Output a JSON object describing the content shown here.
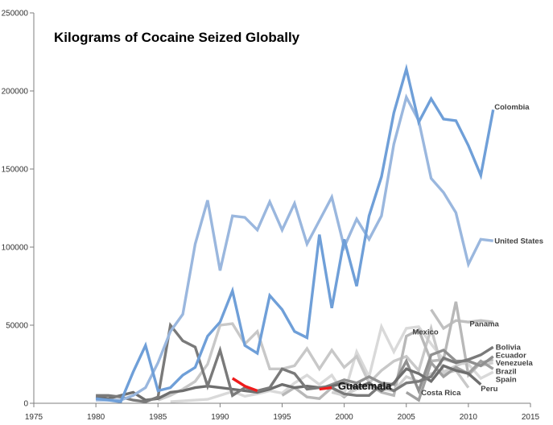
{
  "chart_data": {
    "type": "line",
    "title": "Kilograms of Cocaine Seized Globally",
    "xlabel": "",
    "ylabel": "",
    "xlim": [
      1975,
      2015
    ],
    "ylim": [
      0,
      250000
    ],
    "x_ticks": [
      "1975",
      "1980",
      "1985",
      "1990",
      "1995",
      "2000",
      "2005",
      "2010",
      "2015"
    ],
    "y_ticks": [
      "0",
      "50000",
      "100000",
      "150000",
      "200000",
      "250000"
    ],
    "grid": false,
    "legend": "none (series labelled at line ends)",
    "series": [
      {
        "name": "Spain",
        "color": "#d9d9d9",
        "x": [
          1986,
          1987,
          1988,
          1989,
          1990,
          1991,
          1992,
          1993,
          1994,
          1995,
          1996,
          1997,
          1998,
          1999,
          2000,
          2001,
          2002,
          2003,
          2004,
          2005,
          2006,
          2007,
          2008,
          2009,
          2010,
          2011,
          2012
        ],
        "values": [
          1000,
          1500,
          2000,
          2500,
          5000,
          7500,
          4500,
          6000,
          8000,
          6500,
          13000,
          18000,
          12000,
          18000,
          6000,
          33000,
          17000,
          49000,
          33000,
          48000,
          49000,
          38000,
          28000,
          26000,
          25000,
          16000,
          20000
        ]
      },
      {
        "name": "Panama",
        "color": "#c0c0c0",
        "x": [
          2007,
          2008,
          2009,
          2010,
          2011,
          2012
        ],
        "values": [
          60000,
          48000,
          53000,
          52000,
          53000,
          52000
        ]
      },
      {
        "name": "Mexico",
        "color": "#c8c8c8",
        "x": [
          1985,
          1986,
          1987,
          1988,
          1989,
          1990,
          1991,
          1992,
          1993,
          1994,
          1995,
          1996,
          1997,
          1998,
          1999,
          2000,
          2001,
          2002,
          2003,
          2004,
          2005,
          2006,
          2007,
          2008,
          2009,
          2010
        ],
        "values": [
          2000,
          5000,
          9000,
          14000,
          25000,
          50000,
          51000,
          38000,
          46000,
          22000,
          22000,
          24000,
          35000,
          22000,
          34000,
          23000,
          30000,
          13000,
          21000,
          27000,
          30000,
          21000,
          48000,
          19000,
          21000,
          10000
        ]
      },
      {
        "name": "Ecuador",
        "color": "#b8b8b8",
        "x": [
          1995,
          1996,
          1997,
          1998,
          1999,
          2000,
          2001,
          2002,
          2003,
          2004,
          2005,
          2006,
          2007,
          2008,
          2009,
          2010,
          2011,
          2012
        ],
        "values": [
          5000,
          10000,
          4000,
          3000,
          10000,
          4000,
          11000,
          12000,
          7000,
          5000,
          43000,
          47000,
          27000,
          28000,
          65000,
          18000,
          26000,
          28000
        ]
      },
      {
        "name": "Brazil",
        "color": "#d0d0d0",
        "x": [
          1999,
          2000,
          2001,
          2002,
          2003,
          2004,
          2005,
          2006,
          2007,
          2008,
          2009,
          2010,
          2011,
          2012
        ],
        "values": [
          7000,
          5000,
          9000,
          10000,
          9000,
          8000,
          17000,
          14000,
          19000,
          20000,
          24000,
          27000,
          24000,
          26000
        ]
      },
      {
        "name": "Costa Rica",
        "color": "#a0a0a0",
        "x": [
          2005,
          2006,
          2007,
          2008,
          2009,
          2010,
          2011,
          2012
        ],
        "values": [
          7000,
          2000,
          26000,
          17000,
          23000,
          19000,
          27000,
          22000
        ]
      },
      {
        "name": "Venezuela",
        "color": "#909090",
        "x": [
          1998,
          1999,
          2000,
          2001,
          2002,
          2003,
          2004,
          2005,
          2006,
          2007,
          2008,
          2009,
          2010,
          2011,
          2012
        ],
        "values": [
          9000,
          12000,
          15000,
          13000,
          17000,
          13000,
          12000,
          27000,
          8000,
          31000,
          34000,
          27000,
          27000,
          24000,
          30000
        ]
      },
      {
        "name": "Peru",
        "color": "#6e6e6e",
        "x": [
          1980,
          1981,
          1982,
          1983,
          1984,
          1985,
          1986,
          1987,
          1988,
          1989,
          1990,
          1991,
          1992,
          1993,
          1994,
          1995,
          1996,
          1997,
          1998,
          1999,
          2000,
          2001,
          2002,
          2003,
          2004,
          2005,
          2006,
          2007,
          2008,
          2009,
          2010,
          2011
        ],
        "values": [
          4000,
          3000,
          5000,
          7000,
          2000,
          3000,
          7000,
          8000,
          10000,
          11000,
          10000,
          9000,
          8000,
          7000,
          9000,
          12000,
          10000,
          11000,
          10000,
          11000,
          13000,
          10000,
          13000,
          8000,
          13000,
          22000,
          19000,
          14000,
          24000,
          21000,
          19000,
          12000
        ]
      },
      {
        "name": "Bolivia",
        "color": "#7a7a7a",
        "x": [
          1980,
          1981,
          1982,
          1983,
          1984,
          1985,
          1986,
          1987,
          1988,
          1989,
          1990,
          1991,
          1992,
          1993,
          1994,
          1995,
          1996,
          1997,
          1998,
          1999,
          2000,
          2001,
          2002,
          2003,
          2004,
          2005,
          2006,
          2007,
          2008,
          2009,
          2010,
          2011,
          2012
        ],
        "values": [
          5000,
          5000,
          4000,
          2000,
          1000,
          4000,
          50000,
          40000,
          36000,
          11000,
          34000,
          5000,
          10000,
          8000,
          10000,
          22000,
          19000,
          9000,
          10000,
          10000,
          6000,
          5000,
          5000,
          12000,
          8000,
          13000,
          14000,
          17000,
          29000,
          26000,
          28000,
          31000,
          36000
        ]
      },
      {
        "name": "United States",
        "color": "#9ab7de",
        "x": [
          1980,
          1981,
          1982,
          1983,
          1984,
          1985,
          1986,
          1987,
          1988,
          1989,
          1990,
          1991,
          1992,
          1993,
          1994,
          1995,
          1996,
          1997,
          1998,
          1999,
          2000,
          2001,
          2002,
          2003,
          2004,
          2005,
          2006,
          2007,
          2008,
          2009,
          2010,
          2011,
          2012
        ],
        "values": [
          2000,
          2000,
          2000,
          5000,
          10000,
          26000,
          46000,
          57000,
          102000,
          130000,
          85000,
          120000,
          119000,
          111000,
          129000,
          111000,
          128000,
          102000,
          117000,
          132000,
          100000,
          118000,
          105000,
          120000,
          166000,
          196000,
          181000,
          144000,
          135000,
          122000,
          89000,
          105000,
          104000
        ]
      },
      {
        "name": "Colombia",
        "color": "#6f9fd8",
        "x": [
          1980,
          1981,
          1982,
          1983,
          1984,
          1985,
          1986,
          1987,
          1988,
          1989,
          1990,
          1991,
          1992,
          1993,
          1994,
          1995,
          1996,
          1997,
          1998,
          1999,
          2000,
          2001,
          2002,
          2003,
          2004,
          2005,
          2006,
          2007,
          2008,
          2009,
          2010,
          2011,
          2012
        ],
        "values": [
          3000,
          2000,
          1000,
          20000,
          37000,
          8000,
          10000,
          18000,
          23000,
          43000,
          52000,
          72000,
          37000,
          32000,
          69000,
          60000,
          46000,
          42000,
          108000,
          61000,
          105000,
          75000,
          120000,
          145000,
          186000,
          214000,
          180000,
          195000,
          182000,
          181000,
          165000,
          146000,
          188000
        ]
      },
      {
        "name": "Guatemala",
        "color": "#ee1c1c",
        "x": [
          1991,
          1992,
          1993
        ],
        "values": [
          16000,
          11000,
          8000
        ]
      },
      {
        "name": "Guatemala-late",
        "color": "#ee1c1c",
        "x": [
          1998,
          1999
        ],
        "values": [
          9000,
          10000
        ]
      }
    ],
    "labels": [
      {
        "text": "Colombia",
        "color": "#404040",
        "x": 2012.1,
        "y": 190000,
        "size": "normal"
      },
      {
        "text": "United States",
        "color": "#404040",
        "x": 2012.1,
        "y": 104000,
        "size": "normal"
      },
      {
        "text": "Panama",
        "color": "#404040",
        "x": 2010.1,
        "y": 51000,
        "size": "normal"
      },
      {
        "text": "Mexico",
        "color": "#404040",
        "x": 2005.5,
        "y": 46000,
        "size": "normal"
      },
      {
        "text": "Bolivia",
        "color": "#404040",
        "x": 2012.2,
        "y": 36000,
        "size": "normal"
      },
      {
        "text": "Ecuador",
        "color": "#404040",
        "x": 2012.2,
        "y": 31000,
        "size": "normal"
      },
      {
        "text": "Venezuela",
        "color": "#404040",
        "x": 2012.2,
        "y": 26000,
        "size": "normal"
      },
      {
        "text": "Brazil",
        "color": "#404040",
        "x": 2012.2,
        "y": 20500,
        "size": "normal"
      },
      {
        "text": "Spain",
        "color": "#404040",
        "x": 2012.2,
        "y": 15500,
        "size": "normal"
      },
      {
        "text": "Costa Rica",
        "color": "#404040",
        "x": 2006.2,
        "y": 7000,
        "size": "normal"
      },
      {
        "text": "Peru",
        "color": "#404040",
        "x": 2011.0,
        "y": 9500,
        "size": "normal"
      },
      {
        "text": "Guatemala",
        "color": "#111111",
        "x": 1999.5,
        "y": 10500,
        "size": "big"
      }
    ]
  }
}
